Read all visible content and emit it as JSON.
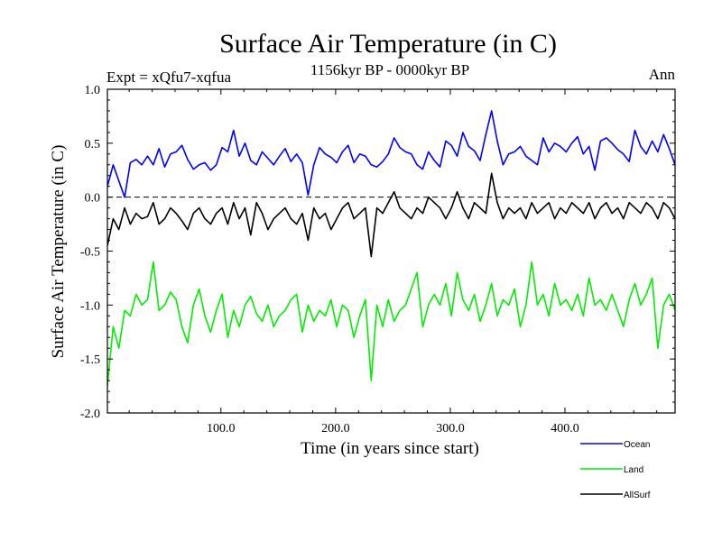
{
  "chart_data": {
    "type": "line",
    "title": "Surface Air Temperature (in C)",
    "subtitle": "1156kyr BP - 0000kyr BP",
    "experiment_label": "Expt = xQfu7-xqfua",
    "period_label": "Ann",
    "xlabel": "Time (in years since start)",
    "ylabel": "Surface Air Temperature (in C)",
    "xlim": [
      1,
      496
    ],
    "ylim": [
      -2.0,
      1.0
    ],
    "x_ticks": [
      100,
      200,
      300,
      400
    ],
    "x_tick_labels": [
      "100.0",
      "200.0",
      "300.0",
      "400.0"
    ],
    "y_ticks": [
      1.0,
      0.5,
      0.0,
      -0.5,
      -1.0,
      -1.5,
      -2.0
    ],
    "y_tick_labels": [
      "1.0",
      "0.5",
      "0.0",
      "-0.5",
      "-1.0",
      "-1.5",
      "-2.0"
    ],
    "reference_line": 0.0,
    "legend_location": "bottom-right",
    "series": [
      {
        "name": "Ocean",
        "color": "#0000ff",
        "x_start": 1,
        "x_step": 5,
        "values": [
          0.1,
          0.3,
          0.15,
          0.0,
          0.32,
          0.35,
          0.3,
          0.38,
          0.3,
          0.45,
          0.28,
          0.4,
          0.42,
          0.48,
          0.35,
          0.26,
          0.3,
          0.32,
          0.25,
          0.3,
          0.46,
          0.42,
          0.62,
          0.38,
          0.5,
          0.34,
          0.3,
          0.42,
          0.36,
          0.3,
          0.38,
          0.45,
          0.33,
          0.4,
          0.32,
          0.02,
          0.3,
          0.46,
          0.4,
          0.37,
          0.32,
          0.42,
          0.48,
          0.32,
          0.4,
          0.38,
          0.3,
          0.28,
          0.33,
          0.4,
          0.55,
          0.46,
          0.42,
          0.4,
          0.3,
          0.26,
          0.42,
          0.34,
          0.28,
          0.52,
          0.48,
          0.38,
          0.6,
          0.47,
          0.43,
          0.34,
          0.58,
          0.8,
          0.52,
          0.3,
          0.4,
          0.42,
          0.47,
          0.38,
          0.34,
          0.3,
          0.55,
          0.42,
          0.5,
          0.47,
          0.42,
          0.5,
          0.56,
          0.4,
          0.47,
          0.25,
          0.52,
          0.55,
          0.5,
          0.44,
          0.4,
          0.33,
          0.62,
          0.47,
          0.4,
          0.52,
          0.42,
          0.58,
          0.45,
          0.3
        ]
      },
      {
        "name": "Land",
        "color": "#00ee00",
        "x_start": 1,
        "x_step": 5,
        "values": [
          -1.75,
          -1.2,
          -1.4,
          -1.05,
          -1.1,
          -0.9,
          -1.0,
          -0.95,
          -0.6,
          -1.05,
          -1.0,
          -0.88,
          -0.95,
          -1.2,
          -1.35,
          -1.0,
          -0.85,
          -1.1,
          -1.25,
          -1.05,
          -0.9,
          -1.3,
          -1.05,
          -1.2,
          -1.0,
          -0.92,
          -1.08,
          -1.15,
          -1.0,
          -1.2,
          -1.1,
          -1.05,
          -0.95,
          -0.9,
          -1.25,
          -1.0,
          -1.15,
          -1.05,
          -1.1,
          -0.95,
          -1.2,
          -1.0,
          -1.05,
          -1.3,
          -1.1,
          -0.95,
          -1.7,
          -1.0,
          -1.2,
          -0.95,
          -1.15,
          -1.05,
          -1.0,
          -0.85,
          -0.7,
          -1.2,
          -1.0,
          -0.9,
          -1.0,
          -0.8,
          -1.1,
          -0.7,
          -0.95,
          -1.05,
          -0.9,
          -1.15,
          -1.0,
          -0.8,
          -1.1,
          -0.95,
          -1.0,
          -0.85,
          -1.2,
          -1.0,
          -0.6,
          -1.0,
          -0.9,
          -1.1,
          -0.8,
          -1.0,
          -0.95,
          -1.05,
          -0.9,
          -1.1,
          -0.75,
          -1.0,
          -0.95,
          -1.05,
          -0.9,
          -1.05,
          -1.2,
          -0.95,
          -0.8,
          -1.0,
          -0.9,
          -0.75,
          -1.4,
          -1.0,
          -0.9,
          -1.05
        ]
      },
      {
        "name": "AllSurf",
        "color": "#000000",
        "x_start": 1,
        "x_step": 5,
        "values": [
          -0.45,
          -0.2,
          -0.3,
          -0.1,
          -0.25,
          -0.15,
          -0.2,
          -0.18,
          -0.05,
          -0.25,
          -0.2,
          -0.1,
          -0.15,
          -0.22,
          -0.3,
          -0.15,
          -0.1,
          -0.2,
          -0.25,
          -0.15,
          -0.1,
          -0.25,
          -0.05,
          -0.2,
          -0.1,
          -0.35,
          -0.05,
          -0.15,
          -0.3,
          -0.2,
          -0.15,
          -0.1,
          -0.2,
          -0.25,
          -0.15,
          -0.4,
          -0.1,
          -0.2,
          -0.15,
          -0.3,
          -0.2,
          -0.1,
          -0.05,
          -0.2,
          -0.15,
          -0.1,
          -0.55,
          -0.1,
          -0.15,
          -0.05,
          0.05,
          -0.1,
          -0.15,
          -0.2,
          -0.1,
          -0.15,
          0.0,
          -0.05,
          -0.1,
          -0.2,
          -0.1,
          0.05,
          -0.1,
          -0.2,
          -0.05,
          -0.1,
          -0.15,
          0.22,
          -0.05,
          -0.2,
          -0.1,
          -0.15,
          -0.1,
          -0.2,
          -0.05,
          -0.15,
          -0.1,
          -0.05,
          -0.2,
          -0.1,
          -0.15,
          -0.05,
          -0.1,
          -0.15,
          -0.05,
          -0.2,
          -0.1,
          -0.05,
          -0.15,
          -0.1,
          -0.2,
          -0.05,
          -0.1,
          -0.15,
          -0.05,
          -0.1,
          -0.2,
          -0.05,
          -0.1,
          -0.2
        ]
      }
    ]
  }
}
